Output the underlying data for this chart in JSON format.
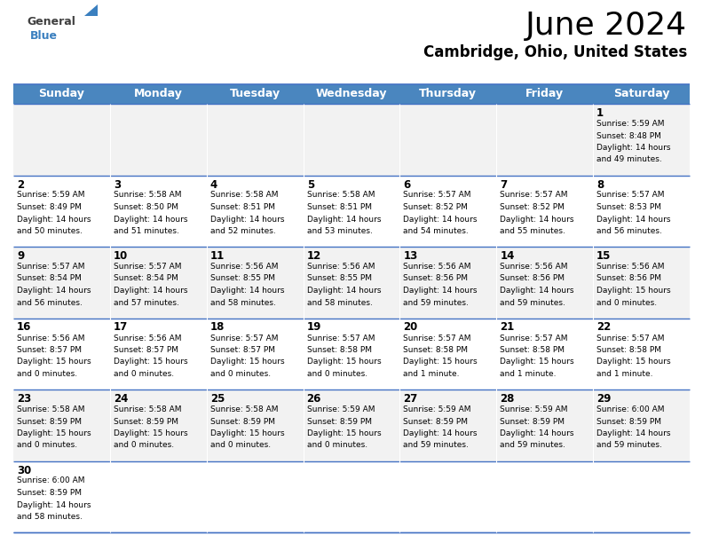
{
  "title": "June 2024",
  "subtitle": "Cambridge, Ohio, United States",
  "header_bg": "#4A86BF",
  "header_text_color": "#FFFFFF",
  "cell_bg_odd": "#F2F2F2",
  "cell_bg_even": "#FFFFFF",
  "border_color": "#4472C4",
  "text_color": "#000000",
  "days_of_week": [
    "Sunday",
    "Monday",
    "Tuesday",
    "Wednesday",
    "Thursday",
    "Friday",
    "Saturday"
  ],
  "calendar": [
    [
      {
        "day": "",
        "info": ""
      },
      {
        "day": "",
        "info": ""
      },
      {
        "day": "",
        "info": ""
      },
      {
        "day": "",
        "info": ""
      },
      {
        "day": "",
        "info": ""
      },
      {
        "day": "",
        "info": ""
      },
      {
        "day": "1",
        "info": "Sunrise: 5:59 AM\nSunset: 8:48 PM\nDaylight: 14 hours\nand 49 minutes."
      }
    ],
    [
      {
        "day": "2",
        "info": "Sunrise: 5:59 AM\nSunset: 8:49 PM\nDaylight: 14 hours\nand 50 minutes."
      },
      {
        "day": "3",
        "info": "Sunrise: 5:58 AM\nSunset: 8:50 PM\nDaylight: 14 hours\nand 51 minutes."
      },
      {
        "day": "4",
        "info": "Sunrise: 5:58 AM\nSunset: 8:51 PM\nDaylight: 14 hours\nand 52 minutes."
      },
      {
        "day": "5",
        "info": "Sunrise: 5:58 AM\nSunset: 8:51 PM\nDaylight: 14 hours\nand 53 minutes."
      },
      {
        "day": "6",
        "info": "Sunrise: 5:57 AM\nSunset: 8:52 PM\nDaylight: 14 hours\nand 54 minutes."
      },
      {
        "day": "7",
        "info": "Sunrise: 5:57 AM\nSunset: 8:52 PM\nDaylight: 14 hours\nand 55 minutes."
      },
      {
        "day": "8",
        "info": "Sunrise: 5:57 AM\nSunset: 8:53 PM\nDaylight: 14 hours\nand 56 minutes."
      }
    ],
    [
      {
        "day": "9",
        "info": "Sunrise: 5:57 AM\nSunset: 8:54 PM\nDaylight: 14 hours\nand 56 minutes."
      },
      {
        "day": "10",
        "info": "Sunrise: 5:57 AM\nSunset: 8:54 PM\nDaylight: 14 hours\nand 57 minutes."
      },
      {
        "day": "11",
        "info": "Sunrise: 5:56 AM\nSunset: 8:55 PM\nDaylight: 14 hours\nand 58 minutes."
      },
      {
        "day": "12",
        "info": "Sunrise: 5:56 AM\nSunset: 8:55 PM\nDaylight: 14 hours\nand 58 minutes."
      },
      {
        "day": "13",
        "info": "Sunrise: 5:56 AM\nSunset: 8:56 PM\nDaylight: 14 hours\nand 59 minutes."
      },
      {
        "day": "14",
        "info": "Sunrise: 5:56 AM\nSunset: 8:56 PM\nDaylight: 14 hours\nand 59 minutes."
      },
      {
        "day": "15",
        "info": "Sunrise: 5:56 AM\nSunset: 8:56 PM\nDaylight: 15 hours\nand 0 minutes."
      }
    ],
    [
      {
        "day": "16",
        "info": "Sunrise: 5:56 AM\nSunset: 8:57 PM\nDaylight: 15 hours\nand 0 minutes."
      },
      {
        "day": "17",
        "info": "Sunrise: 5:56 AM\nSunset: 8:57 PM\nDaylight: 15 hours\nand 0 minutes."
      },
      {
        "day": "18",
        "info": "Sunrise: 5:57 AM\nSunset: 8:57 PM\nDaylight: 15 hours\nand 0 minutes."
      },
      {
        "day": "19",
        "info": "Sunrise: 5:57 AM\nSunset: 8:58 PM\nDaylight: 15 hours\nand 0 minutes."
      },
      {
        "day": "20",
        "info": "Sunrise: 5:57 AM\nSunset: 8:58 PM\nDaylight: 15 hours\nand 1 minute."
      },
      {
        "day": "21",
        "info": "Sunrise: 5:57 AM\nSunset: 8:58 PM\nDaylight: 15 hours\nand 1 minute."
      },
      {
        "day": "22",
        "info": "Sunrise: 5:57 AM\nSunset: 8:58 PM\nDaylight: 15 hours\nand 1 minute."
      }
    ],
    [
      {
        "day": "23",
        "info": "Sunrise: 5:58 AM\nSunset: 8:59 PM\nDaylight: 15 hours\nand 0 minutes."
      },
      {
        "day": "24",
        "info": "Sunrise: 5:58 AM\nSunset: 8:59 PM\nDaylight: 15 hours\nand 0 minutes."
      },
      {
        "day": "25",
        "info": "Sunrise: 5:58 AM\nSunset: 8:59 PM\nDaylight: 15 hours\nand 0 minutes."
      },
      {
        "day": "26",
        "info": "Sunrise: 5:59 AM\nSunset: 8:59 PM\nDaylight: 15 hours\nand 0 minutes."
      },
      {
        "day": "27",
        "info": "Sunrise: 5:59 AM\nSunset: 8:59 PM\nDaylight: 14 hours\nand 59 minutes."
      },
      {
        "day": "28",
        "info": "Sunrise: 5:59 AM\nSunset: 8:59 PM\nDaylight: 14 hours\nand 59 minutes."
      },
      {
        "day": "29",
        "info": "Sunrise: 6:00 AM\nSunset: 8:59 PM\nDaylight: 14 hours\nand 59 minutes."
      }
    ],
    [
      {
        "day": "30",
        "info": "Sunrise: 6:00 AM\nSunset: 8:59 PM\nDaylight: 14 hours\nand 58 minutes."
      },
      {
        "day": "",
        "info": ""
      },
      {
        "day": "",
        "info": ""
      },
      {
        "day": "",
        "info": ""
      },
      {
        "day": "",
        "info": ""
      },
      {
        "day": "",
        "info": ""
      },
      {
        "day": "",
        "info": ""
      }
    ]
  ],
  "title_fontsize": 26,
  "subtitle_fontsize": 12,
  "header_fontsize": 9,
  "day_num_fontsize": 8.5,
  "info_fontsize": 6.5,
  "logo_general_color": "#404040",
  "logo_blue_color": "#3A7FBF",
  "logo_triangle_color": "#3A7FBF"
}
